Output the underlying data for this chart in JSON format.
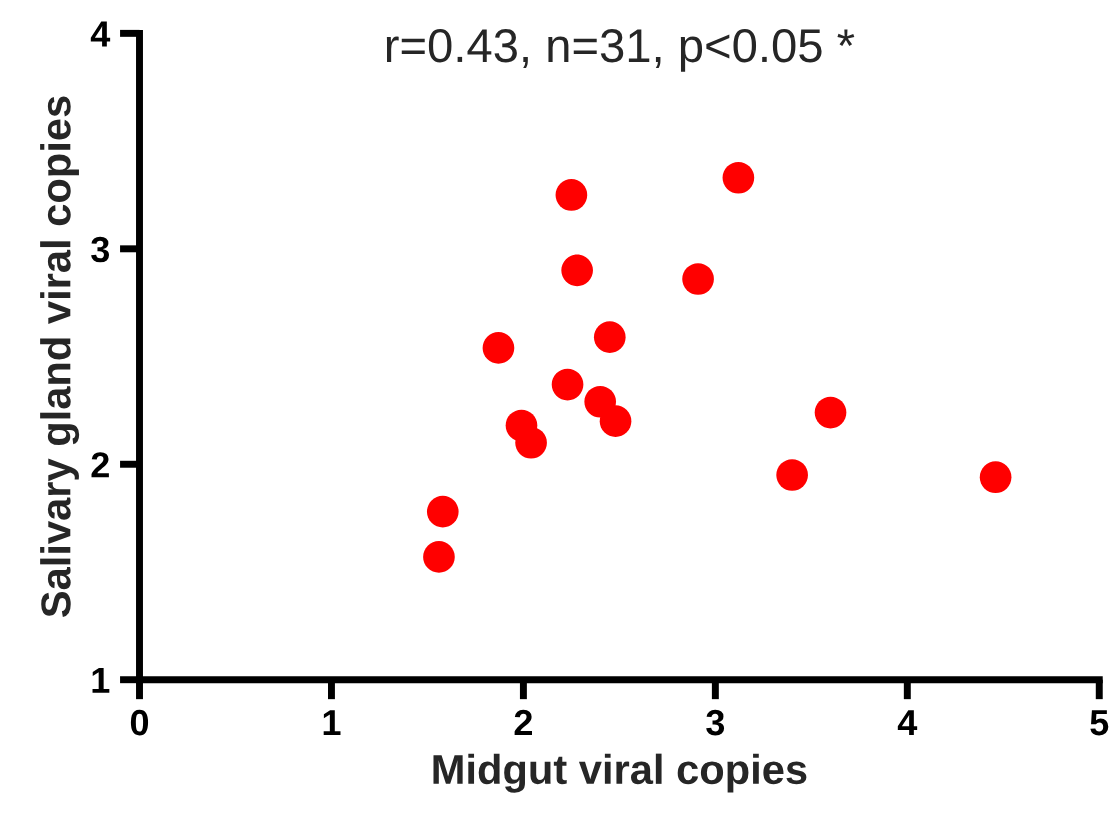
{
  "chart_data": {
    "type": "scatter",
    "title": "r=0.43, n=31, p<0.05 *",
    "xlabel": "Midgut viral copies",
    "ylabel": "Salivary gland viral copies",
    "x": [
      2.25,
      3.12,
      2.28,
      2.91,
      2.45,
      1.87,
      2.23,
      2.4,
      2.48,
      1.99,
      2.04,
      3.6,
      3.4,
      1.58,
      1.56,
      4.46
    ],
    "values": [
      3.25,
      3.33,
      2.9,
      2.86,
      2.59,
      2.54,
      2.37,
      2.29,
      2.2,
      2.18,
      2.1,
      2.24,
      1.95,
      1.78,
      1.57,
      1.94
    ],
    "color": "#ff0000",
    "marker": "circle",
    "xlim": [
      0,
      5
    ],
    "ylim": [
      1,
      4
    ],
    "xticks": [
      0,
      1,
      2,
      3,
      4,
      5
    ],
    "yticks": [
      1,
      2,
      3,
      4
    ],
    "grid": false,
    "legend": false
  }
}
